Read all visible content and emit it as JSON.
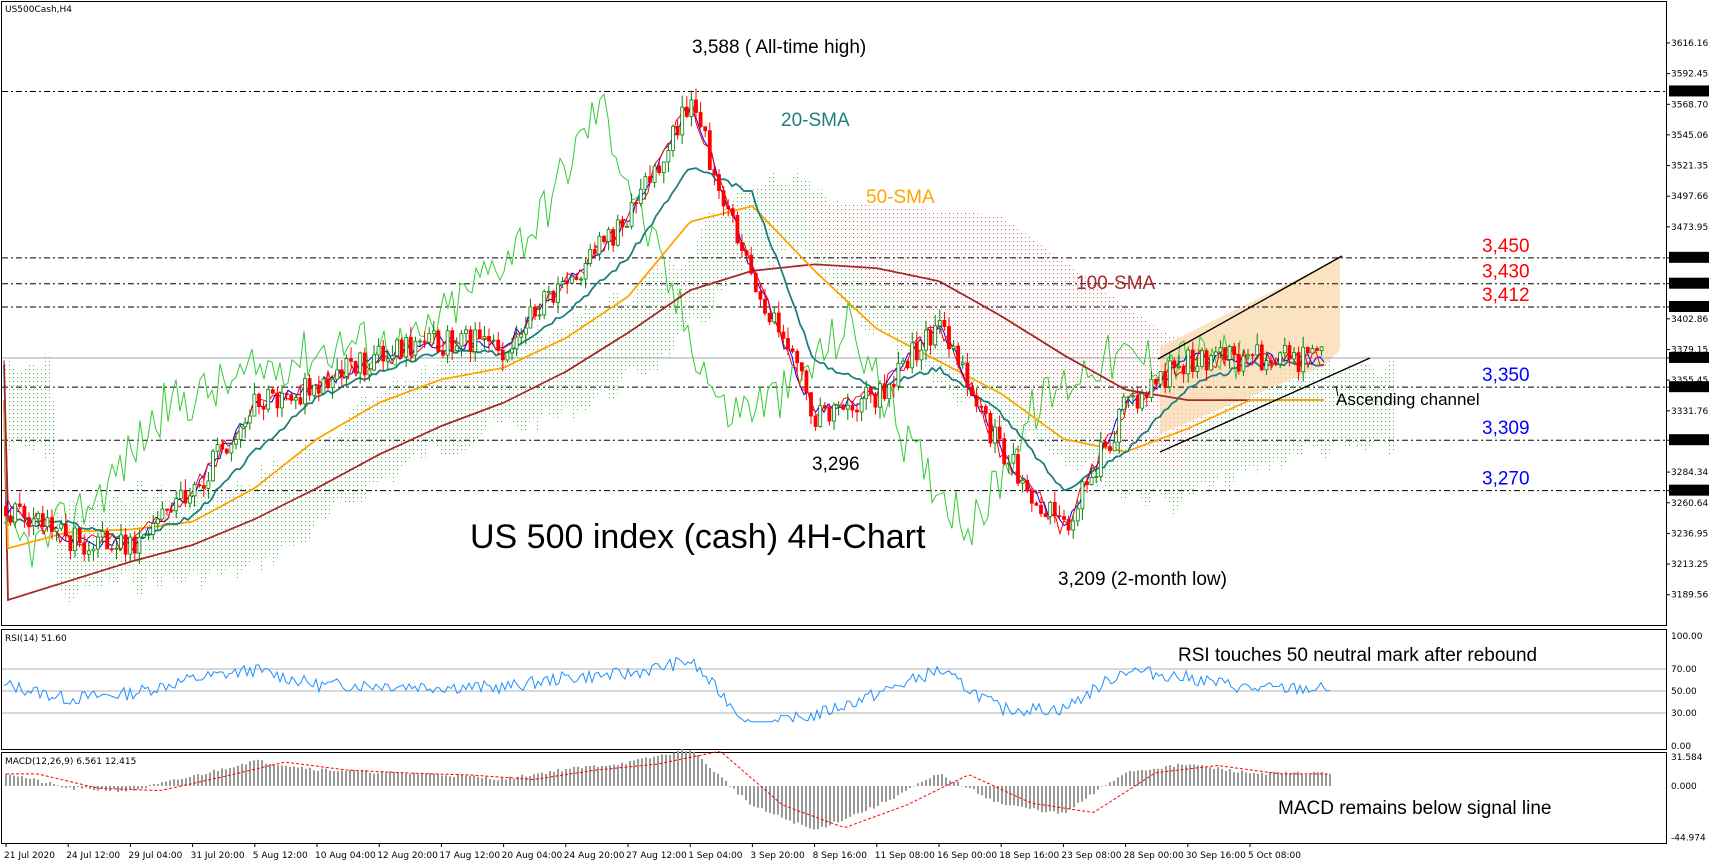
{
  "symbol": "US500Cash,H4",
  "title": "US 500 index (cash) 4H-Chart",
  "colors": {
    "background": "#ffffff",
    "candle_up": "#008000",
    "candle_down": "#ff0000",
    "sma20": "#1f7f7f",
    "sma50": "#ffa500",
    "sma100": "#a52a2a",
    "tenkan": "#ff0000",
    "kijun": "#0000ff",
    "chikou": "#33cc33",
    "cloud_bull": "#33aa33",
    "cloud_bear": "#dd5555",
    "channel_fill": "#f9d9ad",
    "rsi": "#1e90ff",
    "macd_hist": "#999999",
    "macd_signal": "#ff0000",
    "resistance_label": "#ff0000",
    "support_label": "#0000ff"
  },
  "price_axis": {
    "labels": [
      "3616.16",
      "3592.45",
      "3568.70",
      "3545.06",
      "3521.35",
      "3497.66",
      "3473.95",
      "3450.00",
      "3430.00",
      "3412.00",
      "3402.86",
      "3379.15",
      "3372.60",
      "3355.45",
      "3350.00",
      "3331.76",
      "3309.00",
      "3284.34",
      "3270.00",
      "3260.64",
      "3236.95",
      "3213.25",
      "3189.56"
    ],
    "highlighted": [
      "3578.63",
      "3450.00",
      "3430.00",
      "3412.00",
      "3372.60",
      "3350.00",
      "3309.00",
      "3270.00"
    ]
  },
  "rsi_panel": {
    "label": "RSI(14) 51.60",
    "ticks": [
      "100.00",
      "70.00",
      "50.00",
      "30.00",
      "0.00"
    ],
    "note": "RSI touches 50 neutral mark after rebound"
  },
  "macd_panel": {
    "label": "MACD(12,26,9) 6.561 12.415",
    "ticks": [
      "31.584",
      "0.000",
      "-44.974"
    ],
    "note": "MACD remains below signal line"
  },
  "date_axis": [
    "21 Jul 2020",
    "24 Jul 12:00",
    "29 Jul 04:00",
    "31 Jul 20:00",
    "5 Aug 12:00",
    "10 Aug 04:00",
    "12 Aug 20:00",
    "17 Aug 12:00",
    "20 Aug 04:00",
    "24 Aug 20:00",
    "27 Aug 12:00",
    "1 Sep 04:00",
    "3 Sep 20:00",
    "8 Sep 16:00",
    "11 Sep 08:00",
    "16 Sep 00:00",
    "18 Sep 16:00",
    "23 Sep 08:00",
    "28 Sep 00:00",
    "30 Sep 16:00",
    "5 Oct 08:00"
  ],
  "annotations": {
    "ath": "3,588 ( All-time high)",
    "low_3296": "3,296",
    "low_3209": "3,209 (2-month low)",
    "sma20": "20-SMA",
    "sma50": "50-SMA",
    "sma100": "100-SMA",
    "channel": "Ascending channel"
  },
  "levels": [
    {
      "label": "3,450",
      "value": 3450,
      "kind": "resistance"
    },
    {
      "label": "3,430",
      "value": 3430,
      "kind": "resistance"
    },
    {
      "label": "3,412",
      "value": 3412,
      "kind": "resistance"
    },
    {
      "label": "3,350",
      "value": 3350,
      "kind": "support"
    },
    {
      "label": "3,309",
      "value": 3309,
      "kind": "support"
    },
    {
      "label": "3,270",
      "value": 3270,
      "kind": "support"
    }
  ],
  "chart_data": {
    "type": "line",
    "title": "US 500 index (cash) 4H-Chart",
    "ylim": [
      3170,
      3630
    ],
    "x": [
      "21 Jul 2020",
      "24 Jul 12:00",
      "29 Jul 04:00",
      "31 Jul 20:00",
      "5 Aug 12:00",
      "10 Aug 04:00",
      "12 Aug 20:00",
      "17 Aug 12:00",
      "20 Aug 04:00",
      "24 Aug 20:00",
      "27 Aug 12:00",
      "1 Sep 04:00",
      "3 Sep 20:00",
      "8 Sep 16:00",
      "11 Sep 08:00",
      "16 Sep 00:00",
      "18 Sep 16:00",
      "23 Sep 08:00",
      "28 Sep 00:00",
      "30 Sep 16:00",
      "5 Oct 08:00"
    ],
    "series": [
      {
        "name": "Price",
        "values": [
          3258,
          3232,
          3228,
          3270,
          3335,
          3352,
          3372,
          3385,
          3382,
          3430,
          3478,
          3570,
          3440,
          3330,
          3345,
          3400,
          3300,
          3240,
          3335,
          3372,
          3372
        ]
      },
      {
        "name": "20-SMA",
        "values": [
          3248,
          3245,
          3232,
          3250,
          3300,
          3342,
          3362,
          3378,
          3376,
          3408,
          3450,
          3520,
          3500,
          3370,
          3350,
          3365,
          3330,
          3270,
          3300,
          3350,
          3368
        ]
      },
      {
        "name": "50-SMA",
        "values": [
          3225,
          3238,
          3240,
          3246,
          3272,
          3310,
          3338,
          3356,
          3365,
          3388,
          3420,
          3478,
          3490,
          3440,
          3395,
          3370,
          3345,
          3310,
          3300,
          3318,
          3340
        ]
      },
      {
        "name": "100-SMA",
        "values": [
          3185,
          3200,
          3215,
          3228,
          3248,
          3272,
          3298,
          3320,
          3338,
          3362,
          3392,
          3425,
          3440,
          3445,
          3442,
          3432,
          3405,
          3375,
          3348,
          3340,
          3340
        ]
      }
    ]
  }
}
